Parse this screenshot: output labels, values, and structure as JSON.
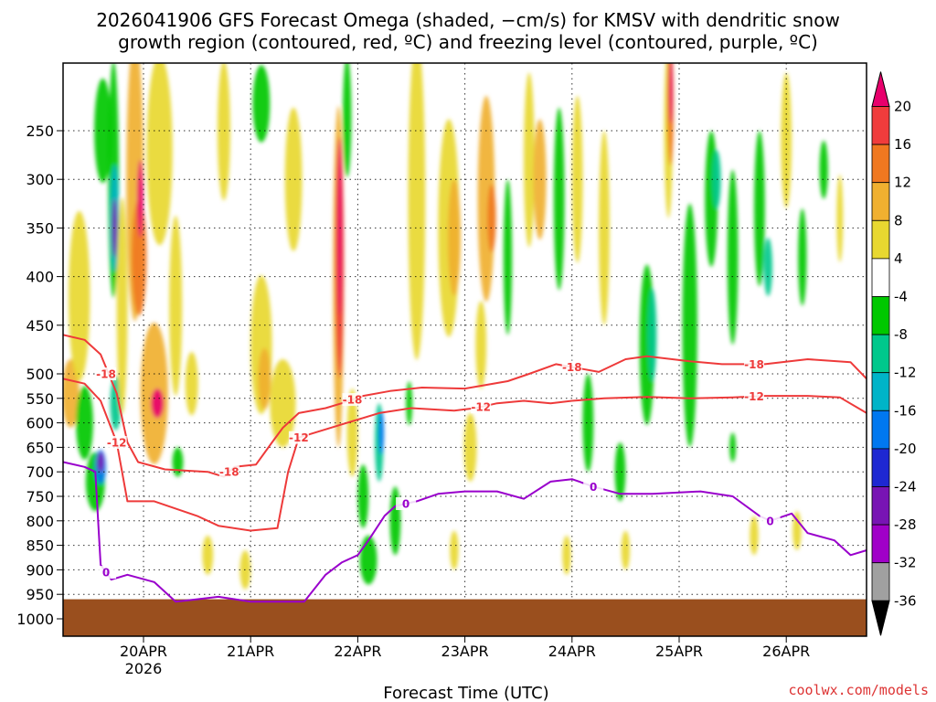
{
  "chart_data": {
    "type": "heatmap",
    "title_line1": "2026041906 GFS Forecast Omega (shaded, −cm/s) for KMSV with dendritic snow",
    "title_line2": "growth region (contoured, red, ºC) and freezing level (contoured, purple, ºC)",
    "xlabel": "Forecast Time (UTC)",
    "ylabel": "",
    "credit": "coolwx.com/models",
    "x_ticks": [
      {
        "label": "20APR",
        "day": 20.0
      },
      {
        "label": "21APR",
        "day": 21.0
      },
      {
        "label": "22APR",
        "day": 22.0
      },
      {
        "label": "23APR",
        "day": 23.0
      },
      {
        "label": "24APR",
        "day": 24.0
      },
      {
        "label": "25APR",
        "day": 25.0
      },
      {
        "label": "26APR",
        "day": 26.0
      }
    ],
    "x_year_label": "2026",
    "x_range": [
      19.25,
      26.75
    ],
    "y_ticks": [
      250,
      300,
      350,
      400,
      450,
      500,
      550,
      600,
      650,
      700,
      750,
      800,
      850,
      900,
      950,
      1000
    ],
    "y_range": [
      200,
      1010
    ],
    "ground_level_hPa": 960,
    "colorbar": {
      "labels": [
        "20",
        "16",
        "12",
        "8",
        "4",
        "-4",
        "-8",
        "-12",
        "-16",
        "-20",
        "-24",
        "-28",
        "-32",
        "-36"
      ],
      "colors": [
        "#e8006c",
        "#f03c3c",
        "#f07820",
        "#f0b030",
        "#e8d830",
        "#ffffff",
        "#00c800",
        "#00c88c",
        "#00b4c8",
        "#0078f0",
        "#1e28d2",
        "#7814b4",
        "#a000c8",
        "#a0a0a0",
        "#000000"
      ]
    },
    "shading_blobs": [
      {
        "day": 19.32,
        "hPa": 540,
        "w": 0.08,
        "h": 120,
        "c": 8
      },
      {
        "day": 19.4,
        "hPa": 420,
        "w": 0.1,
        "h": 180,
        "c": 4
      },
      {
        "day": 19.45,
        "hPa": 600,
        "w": 0.08,
        "h": 150,
        "c": -8
      },
      {
        "day": 19.55,
        "hPa": 720,
        "w": 0.09,
        "h": 120,
        "c": -8
      },
      {
        "day": 19.6,
        "hPa": 690,
        "w": 0.05,
        "h": 70,
        "c": -20
      },
      {
        "day": 19.6,
        "hPa": 680,
        "w": 0.03,
        "h": 40,
        "c": -28
      },
      {
        "day": 19.62,
        "hPa": 250,
        "w": 0.08,
        "h": 90,
        "c": -8
      },
      {
        "day": 19.72,
        "hPa": 300,
        "w": 0.05,
        "h": 220,
        "c": -8
      },
      {
        "day": 19.73,
        "hPa": 340,
        "w": 0.04,
        "h": 110,
        "c": -16
      },
      {
        "day": 19.73,
        "hPa": 350,
        "w": 0.025,
        "h": 60,
        "c": -28
      },
      {
        "day": 19.74,
        "hPa": 560,
        "w": 0.05,
        "h": 110,
        "c": -12
      },
      {
        "day": 19.8,
        "hPa": 430,
        "w": 0.05,
        "h": 250,
        "c": 4
      },
      {
        "day": 19.92,
        "hPa": 300,
        "w": 0.08,
        "h": 260,
        "c": 8
      },
      {
        "day": 19.96,
        "hPa": 380,
        "w": 0.07,
        "h": 120,
        "c": 12
      },
      {
        "day": 19.97,
        "hPa": 320,
        "w": 0.03,
        "h": 80,
        "c": 20
      },
      {
        "day": 20.1,
        "hPa": 540,
        "w": 0.13,
        "h": 220,
        "c": 8
      },
      {
        "day": 20.13,
        "hPa": 560,
        "w": 0.06,
        "h": 60,
        "c": 20
      },
      {
        "day": 20.15,
        "hPa": 270,
        "w": 0.12,
        "h": 170,
        "c": 4
      },
      {
        "day": 20.3,
        "hPa": 430,
        "w": 0.06,
        "h": 200,
        "c": 4
      },
      {
        "day": 20.45,
        "hPa": 520,
        "w": 0.06,
        "h": 100,
        "c": 4
      },
      {
        "day": 20.32,
        "hPa": 680,
        "w": 0.05,
        "h": 60,
        "c": -8
      },
      {
        "day": 20.75,
        "hPa": 250,
        "w": 0.06,
        "h": 120,
        "c": 4
      },
      {
        "day": 21.1,
        "hPa": 230,
        "w": 0.08,
        "h": 60,
        "c": -8
      },
      {
        "day": 21.1,
        "hPa": 470,
        "w": 0.1,
        "h": 170,
        "c": 4
      },
      {
        "day": 21.13,
        "hPa": 510,
        "w": 0.06,
        "h": 90,
        "c": 8
      },
      {
        "day": 21.3,
        "hPa": 560,
        "w": 0.12,
        "h": 160,
        "c": 4
      },
      {
        "day": 21.4,
        "hPa": 300,
        "w": 0.08,
        "h": 140,
        "c": 4
      },
      {
        "day": 21.82,
        "hPa": 400,
        "w": 0.05,
        "h": 380,
        "c": 8
      },
      {
        "day": 21.83,
        "hPa": 380,
        "w": 0.04,
        "h": 250,
        "c": 16
      },
      {
        "day": 21.83,
        "hPa": 350,
        "w": 0.02,
        "h": 180,
        "c": 20
      },
      {
        "day": 21.9,
        "hPa": 240,
        "w": 0.04,
        "h": 100,
        "c": -8
      },
      {
        "day": 21.95,
        "hPa": 620,
        "w": 0.05,
        "h": 180,
        "c": 4
      },
      {
        "day": 22.05,
        "hPa": 750,
        "w": 0.05,
        "h": 130,
        "c": -8
      },
      {
        "day": 22.1,
        "hPa": 880,
        "w": 0.08,
        "h": 100,
        "c": -8
      },
      {
        "day": 22.2,
        "hPa": 640,
        "w": 0.04,
        "h": 160,
        "c": -12
      },
      {
        "day": 22.22,
        "hPa": 620,
        "w": 0.025,
        "h": 90,
        "c": -20
      },
      {
        "day": 22.35,
        "hPa": 800,
        "w": 0.05,
        "h": 140,
        "c": -8
      },
      {
        "day": 22.48,
        "hPa": 560,
        "w": 0.03,
        "h": 90,
        "c": -8
      },
      {
        "day": 22.55,
        "hPa": 320,
        "w": 0.08,
        "h": 300,
        "c": 4
      },
      {
        "day": 22.85,
        "hPa": 350,
        "w": 0.1,
        "h": 220,
        "c": 4
      },
      {
        "day": 22.9,
        "hPa": 360,
        "w": 0.06,
        "h": 120,
        "c": 8
      },
      {
        "day": 23.05,
        "hPa": 650,
        "w": 0.06,
        "h": 140,
        "c": 4
      },
      {
        "day": 23.2,
        "hPa": 320,
        "w": 0.08,
        "h": 200,
        "c": 8
      },
      {
        "day": 23.25,
        "hPa": 340,
        "w": 0.04,
        "h": 70,
        "c": 12
      },
      {
        "day": 23.15,
        "hPa": 470,
        "w": 0.05,
        "h": 100,
        "c": 4
      },
      {
        "day": 23.4,
        "hPa": 380,
        "w": 0.04,
        "h": 160,
        "c": -8
      },
      {
        "day": 23.6,
        "hPa": 280,
        "w": 0.05,
        "h": 160,
        "c": 4
      },
      {
        "day": 23.7,
        "hPa": 300,
        "w": 0.06,
        "h": 120,
        "c": 8
      },
      {
        "day": 23.88,
        "hPa": 320,
        "w": 0.05,
        "h": 180,
        "c": -8
      },
      {
        "day": 24.05,
        "hPa": 300,
        "w": 0.05,
        "h": 160,
        "c": 4
      },
      {
        "day": 24.15,
        "hPa": 600,
        "w": 0.05,
        "h": 200,
        "c": -8
      },
      {
        "day": 24.3,
        "hPa": 350,
        "w": 0.05,
        "h": 200,
        "c": 4
      },
      {
        "day": 24.45,
        "hPa": 700,
        "w": 0.05,
        "h": 120,
        "c": -8
      },
      {
        "day": 24.7,
        "hPa": 470,
        "w": 0.07,
        "h": 200,
        "c": -8
      },
      {
        "day": 24.75,
        "hPa": 460,
        "w": 0.04,
        "h": 100,
        "c": -12
      },
      {
        "day": 24.9,
        "hPa": 250,
        "w": 0.04,
        "h": 150,
        "c": 4
      },
      {
        "day": 24.92,
        "hPa": 230,
        "w": 0.03,
        "h": 100,
        "c": 12
      },
      {
        "day": 24.92,
        "hPa": 220,
        "w": 0.02,
        "h": 50,
        "c": 20
      },
      {
        "day": 25.1,
        "hPa": 450,
        "w": 0.07,
        "h": 300,
        "c": -8
      },
      {
        "day": 25.3,
        "hPa": 320,
        "w": 0.06,
        "h": 140,
        "c": -8
      },
      {
        "day": 25.35,
        "hPa": 300,
        "w": 0.04,
        "h": 60,
        "c": -12
      },
      {
        "day": 25.5,
        "hPa": 380,
        "w": 0.05,
        "h": 180,
        "c": -8
      },
      {
        "day": 25.75,
        "hPa": 330,
        "w": 0.05,
        "h": 160,
        "c": -8
      },
      {
        "day": 25.83,
        "hPa": 390,
        "w": 0.04,
        "h": 60,
        "c": -12
      },
      {
        "day": 26.0,
        "hPa": 260,
        "w": 0.05,
        "h": 120,
        "c": 4
      },
      {
        "day": 26.15,
        "hPa": 380,
        "w": 0.04,
        "h": 100,
        "c": -8
      },
      {
        "day": 26.35,
        "hPa": 290,
        "w": 0.04,
        "h": 60,
        "c": -8
      },
      {
        "day": 26.5,
        "hPa": 340,
        "w": 0.03,
        "h": 90,
        "c": 4
      },
      {
        "day": 26.1,
        "hPa": 820,
        "w": 0.04,
        "h": 80,
        "c": 4
      },
      {
        "day": 25.7,
        "hPa": 830,
        "w": 0.04,
        "h": 80,
        "c": 4
      },
      {
        "day": 23.95,
        "hPa": 870,
        "w": 0.04,
        "h": 80,
        "c": 4
      },
      {
        "day": 22.9,
        "hPa": 860,
        "w": 0.04,
        "h": 80,
        "c": 4
      },
      {
        "day": 20.95,
        "hPa": 900,
        "w": 0.05,
        "h": 80,
        "c": 4
      },
      {
        "day": 20.6,
        "hPa": 870,
        "w": 0.05,
        "h": 80,
        "c": 4
      },
      {
        "day": 24.5,
        "hPa": 860,
        "w": 0.04,
        "h": 80,
        "c": 4
      },
      {
        "day": 25.5,
        "hPa": 650,
        "w": 0.03,
        "h": 60,
        "c": -8
      }
    ],
    "series": [
      {
        "name": "-18",
        "color": "#ee3a3a",
        "label_at_day": [
          19.65,
          24.0,
          25.7,
          20.8,
          21.95
        ],
        "points": [
          [
            19.25,
            460
          ],
          [
            19.45,
            465
          ],
          [
            19.6,
            480
          ],
          [
            19.75,
            540
          ],
          [
            19.85,
            640
          ],
          [
            19.95,
            680
          ],
          [
            20.2,
            695
          ],
          [
            20.6,
            700
          ],
          [
            20.75,
            710
          ],
          [
            20.85,
            690
          ],
          [
            21.05,
            685
          ],
          [
            21.2,
            640
          ],
          [
            21.3,
            610
          ],
          [
            21.45,
            580
          ],
          [
            21.7,
            570
          ],
          [
            21.85,
            560
          ],
          [
            22.05,
            545
          ],
          [
            22.3,
            535
          ],
          [
            22.6,
            528
          ],
          [
            23.0,
            530
          ],
          [
            23.4,
            515
          ],
          [
            23.6,
            500
          ],
          [
            23.85,
            490
          ],
          [
            24.1,
            495
          ],
          [
            24.25,
            498
          ],
          [
            24.5,
            485
          ],
          [
            24.7,
            482
          ],
          [
            25.1,
            487
          ],
          [
            25.4,
            490
          ],
          [
            25.8,
            490
          ],
          [
            26.2,
            485
          ],
          [
            26.6,
            488
          ],
          [
            26.75,
            510
          ]
        ]
      },
      {
        "name": "-12",
        "color": "#ee3a3a",
        "label_at_day": [
          19.75,
          23.15,
          25.7,
          21.45
        ],
        "points": [
          [
            19.25,
            510
          ],
          [
            19.45,
            520
          ],
          [
            19.6,
            555
          ],
          [
            19.75,
            640
          ],
          [
            19.85,
            760
          ],
          [
            20.1,
            760
          ],
          [
            20.5,
            790
          ],
          [
            20.7,
            810
          ],
          [
            21.0,
            820
          ],
          [
            21.25,
            815
          ],
          [
            21.35,
            700
          ],
          [
            21.45,
            630
          ],
          [
            21.6,
            620
          ],
          [
            21.9,
            600
          ],
          [
            22.2,
            580
          ],
          [
            22.5,
            570
          ],
          [
            22.9,
            575
          ],
          [
            23.1,
            570
          ],
          [
            23.3,
            560
          ],
          [
            23.55,
            555
          ],
          [
            23.8,
            560
          ],
          [
            24.0,
            555
          ],
          [
            24.3,
            550
          ],
          [
            24.7,
            547
          ],
          [
            25.1,
            550
          ],
          [
            25.5,
            548
          ],
          [
            25.8,
            545
          ],
          [
            26.2,
            545
          ],
          [
            26.5,
            548
          ],
          [
            26.75,
            580
          ]
        ]
      },
      {
        "name": "0",
        "color": "#9900cc",
        "label_at_day": [
          19.65,
          22.45,
          24.2,
          25.85
        ],
        "points": [
          [
            19.25,
            680
          ],
          [
            19.45,
            690
          ],
          [
            19.55,
            700
          ],
          [
            19.6,
            890
          ],
          [
            19.7,
            920
          ],
          [
            19.85,
            910
          ],
          [
            20.1,
            925
          ],
          [
            20.3,
            965
          ],
          [
            20.5,
            960
          ],
          [
            20.7,
            955
          ],
          [
            21.0,
            965
          ],
          [
            21.5,
            965
          ],
          [
            21.7,
            910
          ],
          [
            21.85,
            885
          ],
          [
            22.0,
            870
          ],
          [
            22.1,
            840
          ],
          [
            22.25,
            790
          ],
          [
            22.35,
            770
          ],
          [
            22.55,
            760
          ],
          [
            22.75,
            745
          ],
          [
            23.0,
            740
          ],
          [
            23.3,
            740
          ],
          [
            23.55,
            755
          ],
          [
            23.8,
            720
          ],
          [
            24.0,
            715
          ],
          [
            24.2,
            730
          ],
          [
            24.45,
            745
          ],
          [
            24.75,
            745
          ],
          [
            25.2,
            740
          ],
          [
            25.5,
            750
          ],
          [
            25.75,
            790
          ],
          [
            25.85,
            800
          ],
          [
            26.05,
            785
          ],
          [
            26.2,
            825
          ],
          [
            26.45,
            840
          ],
          [
            26.6,
            870
          ],
          [
            26.75,
            860
          ]
        ]
      }
    ]
  }
}
